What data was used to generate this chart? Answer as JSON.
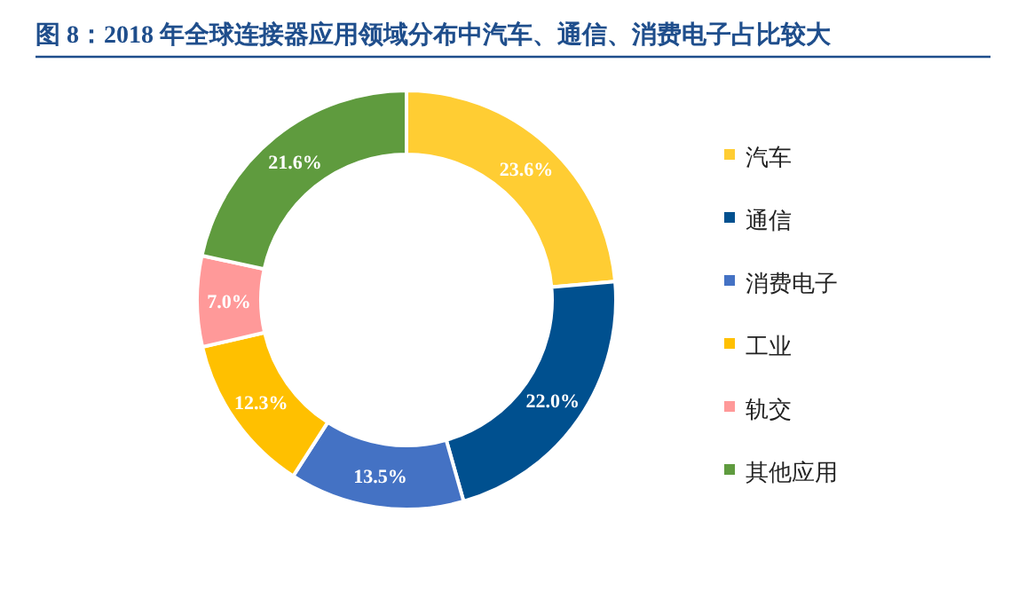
{
  "chart_data": {
    "type": "donut",
    "title": "图 8：2018 年全球连接器应用领域分布中汽车、通信、消费电子占比较大",
    "categories": [
      "汽车",
      "通信",
      "消费电子",
      "工业",
      "轨交",
      "其他应用"
    ],
    "values": [
      23.6,
      22.0,
      13.5,
      12.3,
      7.0,
      21.6
    ],
    "colors": [
      "#ffcd33",
      "#00508f",
      "#4472c4",
      "#ffc000",
      "#ff9999",
      "#5f9b3e"
    ],
    "value_labels": [
      "23.6%",
      "22.0%",
      "13.5%",
      "12.3%",
      "7.0%",
      "21.6%"
    ],
    "legend": "right"
  }
}
